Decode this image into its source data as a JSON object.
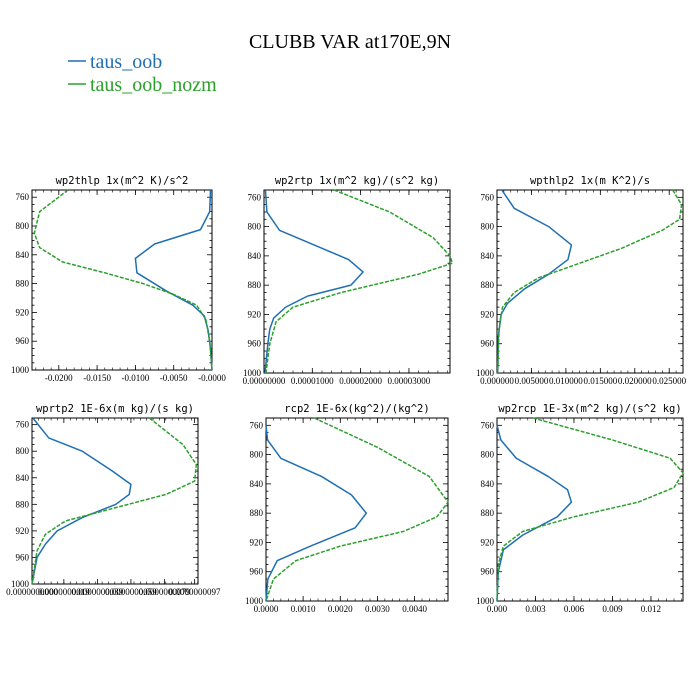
{
  "figure": {
    "title": "CLUBB VAR at170E,9N",
    "legend": [
      {
        "name": "taus_oob",
        "color": "#1f6fb4"
      },
      {
        "name": "taus_oob_nozm",
        "color": "#2ca02c"
      }
    ]
  },
  "chart_data": [
    {
      "type": "line",
      "title": "wp2thlp  1x(m^2 K)/s^2",
      "xlim": [
        -0.0235,
        0.0
      ],
      "ylim": [
        750,
        1000
      ],
      "y_inverted": true,
      "xticks": [
        "-0.0200",
        "-0.0150",
        "-0.0100",
        "-0.0050",
        "-0.0000"
      ],
      "xtick_values": [
        -0.02,
        -0.015,
        -0.01,
        -0.005,
        0.0
      ],
      "yticks": [
        760,
        800,
        840,
        880,
        920,
        960,
        1000
      ],
      "series": [
        {
          "name": "taus_oob",
          "color": "#1f6fb4",
          "dashed": false,
          "x": [
            -0.0002,
            -0.0003,
            -0.0015,
            -0.0075,
            -0.01,
            -0.0098,
            -0.006,
            -0.0025,
            -0.001,
            -0.0005,
            -0.0002,
            0.0
          ],
          "y": [
            750,
            780,
            805,
            825,
            845,
            865,
            890,
            910,
            925,
            945,
            970,
            1000
          ]
        },
        {
          "name": "taus_oob_nozm",
          "color": "#2ca02c",
          "dashed": true,
          "x": [
            -0.0188,
            -0.0225,
            -0.0232,
            -0.0225,
            -0.0195,
            -0.014,
            -0.009,
            -0.005,
            -0.002,
            -0.0008,
            -0.0003,
            0.0
          ],
          "y": [
            750,
            780,
            810,
            830,
            850,
            865,
            880,
            895,
            910,
            930,
            960,
            1000
          ]
        }
      ]
    },
    {
      "type": "line",
      "title": "wp2rtp  1x(m^2 kg)/(s^2 kg)",
      "xlim": [
        0.0,
        3.85e-05
      ],
      "ylim": [
        750,
        1000
      ],
      "y_inverted": true,
      "xticks": [
        "0.00000000",
        "0.00001000",
        "0.00002000",
        "0.00003000"
      ],
      "xtick_values": [
        0.0,
        1e-05,
        2e-05,
        3e-05
      ],
      "yticks": [
        760,
        800,
        840,
        880,
        920,
        960,
        1000
      ],
      "series": [
        {
          "name": "taus_oob",
          "color": "#1f6fb4",
          "dashed": false,
          "x": [
            3e-07,
            6e-07,
            3.2e-06,
            1.75e-05,
            2.05e-05,
            1.8e-05,
            9e-06,
            4.5e-06,
            2e-06,
            1.2e-06,
            8e-07,
            2e-07
          ],
          "y": [
            750,
            780,
            805,
            845,
            862,
            880,
            895,
            910,
            925,
            940,
            960,
            1000
          ]
        },
        {
          "name": "taus_oob_nozm",
          "color": "#2ca02c",
          "dashed": true,
          "x": [
            1.45e-05,
            2.6e-05,
            3.5e-05,
            3.85e-05,
            3.9e-05,
            3.2e-05,
            1.6e-05,
            6e-06,
            2.5e-06,
            1.2e-06,
            4e-07
          ],
          "y": [
            750,
            780,
            815,
            840,
            850,
            865,
            890,
            910,
            930,
            960,
            1000
          ]
        }
      ]
    },
    {
      "type": "line",
      "title": "wpthlp2  1x(m K^2)/s",
      "xlim": [
        0.0,
        0.027
      ],
      "ylim": [
        750,
        1000
      ],
      "y_inverted": true,
      "xticks": [
        "0.000000",
        "0.005000",
        "0.010000",
        "0.015000",
        "0.020000",
        "0.025000"
      ],
      "xtick_values": [
        0.0,
        0.005,
        0.01,
        0.015,
        0.02,
        0.025
      ],
      "yticks": [
        760,
        800,
        840,
        880,
        920,
        960,
        1000
      ],
      "series": [
        {
          "name": "taus_oob",
          "color": "#1f6fb4",
          "dashed": false,
          "x": [
            0.0007,
            0.0025,
            0.0075,
            0.0108,
            0.0103,
            0.0075,
            0.004,
            0.0015,
            0.0006,
            0.0002,
            0.0001
          ],
          "y": [
            750,
            775,
            800,
            825,
            845,
            865,
            885,
            905,
            920,
            950,
            1000
          ]
        },
        {
          "name": "taus_oob_nozm",
          "color": "#2ca02c",
          "dashed": true,
          "x": [
            0.0255,
            0.0268,
            0.0265,
            0.024,
            0.018,
            0.012,
            0.006,
            0.0025,
            0.0008,
            0.0003,
            0.0001
          ],
          "y": [
            750,
            770,
            790,
            805,
            830,
            850,
            870,
            890,
            910,
            940,
            1000
          ]
        }
      ]
    },
    {
      "type": "line",
      "title": "wprtp2  1E-6x(m kg)/(s kg)",
      "xlim": [
        0.0,
        9.9e-09
      ],
      "ylim": [
        750,
        1000
      ],
      "y_inverted": true,
      "xticks": [
        "0.0000000000",
        "0.0000000019",
        "0.0000000039",
        "0.0000000059",
        "0.0000000079",
        "0.0000000097"
      ],
      "xtick_values": [
        0.0,
        1.9e-09,
        3.9e-09,
        5.9e-09,
        7.9e-09,
        9.7e-09
      ],
      "yticks": [
        760,
        800,
        840,
        880,
        920,
        960,
        1000
      ],
      "series": [
        {
          "name": "taus_oob",
          "color": "#1f6fb4",
          "dashed": false,
          "x": [
            5e-11,
            1e-09,
            3e-09,
            4.8e-09,
            5.9e-09,
            5.8e-09,
            5e-09,
            3e-09,
            1.5e-09,
            8e-10,
            3e-10,
            0.0
          ],
          "y": [
            750,
            780,
            800,
            830,
            850,
            865,
            880,
            900,
            920,
            940,
            960,
            1000
          ]
        },
        {
          "name": "taus_oob_nozm",
          "color": "#2ca02c",
          "dashed": true,
          "x": [
            7e-09,
            9e-09,
            9.8e-09,
            9.7e-09,
            8e-09,
            5e-09,
            2e-09,
            8e-10,
            3e-10,
            0.0
          ],
          "y": [
            750,
            790,
            820,
            845,
            865,
            885,
            905,
            925,
            950,
            1000
          ]
        }
      ]
    },
    {
      "type": "line",
      "title": "rcp2  1E-6x(kg^2)/(kg^2)",
      "xlim": [
        0.0,
        0.0049
      ],
      "ylim": [
        750,
        1000
      ],
      "y_inverted": true,
      "xticks": [
        "0.0000",
        "0.0010",
        "0.0020",
        "0.0030",
        "0.0040"
      ],
      "xtick_values": [
        0.0,
        0.001,
        0.002,
        0.003,
        0.004
      ],
      "yticks": [
        760,
        800,
        840,
        880,
        920,
        960,
        1000
      ],
      "series": [
        {
          "name": "taus_oob",
          "color": "#1f6fb4",
          "dashed": false,
          "x": [
            0.0,
            4e-05,
            0.0004,
            0.0015,
            0.0023,
            0.0027,
            0.0024,
            0.0012,
            0.0003,
            5e-05,
            0.0
          ],
          "y": [
            760,
            780,
            805,
            830,
            855,
            880,
            900,
            925,
            945,
            970,
            1000
          ]
        },
        {
          "name": "taus_oob_nozm",
          "color": "#2ca02c",
          "dashed": true,
          "x": [
            0.0013,
            0.003,
            0.0044,
            0.0049,
            0.0046,
            0.0037,
            0.002,
            0.0008,
            0.0002,
            0.0
          ],
          "y": [
            750,
            790,
            830,
            865,
            885,
            905,
            925,
            945,
            970,
            1000
          ]
        }
      ]
    },
    {
      "type": "line",
      "title": "wp2rcp  1E-3x(m^2 kg)/(s^2 kg)",
      "xlim": [
        0.0,
        0.0145
      ],
      "ylim": [
        750,
        1000
      ],
      "y_inverted": true,
      "xticks": [
        "0.000",
        "0.003",
        "0.006",
        "0.009",
        "0.012"
      ],
      "xtick_values": [
        0.0,
        0.003,
        0.006,
        0.009,
        0.012
      ],
      "yticks": [
        760,
        800,
        840,
        880,
        920,
        960,
        1000
      ],
      "series": [
        {
          "name": "taus_oob",
          "color": "#1f6fb4",
          "dashed": false,
          "x": [
            0.0,
            0.0003,
            0.0015,
            0.004,
            0.0055,
            0.0058,
            0.0047,
            0.002,
            0.0005,
            0.0001,
            0.0
          ],
          "y": [
            760,
            780,
            805,
            830,
            848,
            865,
            885,
            910,
            930,
            960,
            1000
          ]
        },
        {
          "name": "taus_oob_nozm",
          "color": "#2ca02c",
          "dashed": true,
          "x": [
            0.0028,
            0.009,
            0.0135,
            0.0145,
            0.0138,
            0.011,
            0.006,
            0.002,
            0.0005,
            0.0001,
            0.0
          ],
          "y": [
            750,
            780,
            805,
            825,
            845,
            865,
            885,
            905,
            925,
            950,
            1000
          ]
        }
      ]
    }
  ]
}
